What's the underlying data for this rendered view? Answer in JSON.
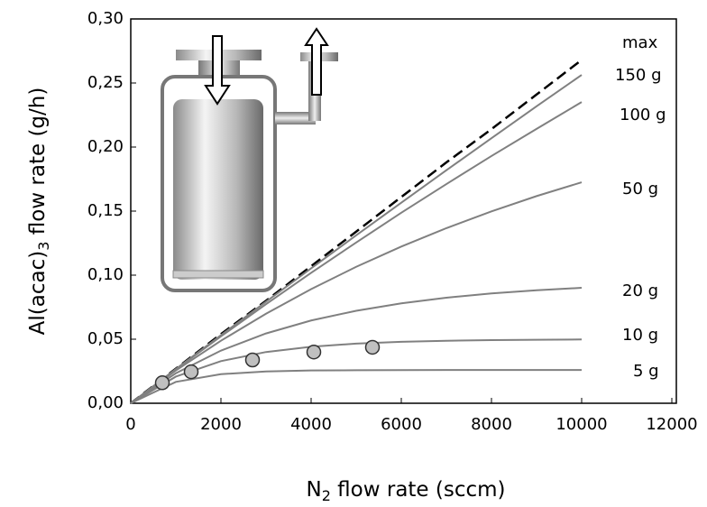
{
  "chart_data": {
    "type": "line",
    "xlabel": {
      "main": "N",
      "sub": "2",
      "rest": " flow rate (sccm)"
    },
    "ylabel": {
      "main": "Al(acac)",
      "sub": "3",
      "rest": " flow rate (g/h)"
    },
    "x": [
      0,
      1000,
      2000,
      3000,
      4000,
      5000,
      6000,
      7000,
      8000,
      9000,
      10000
    ],
    "series": [
      {
        "name": "max",
        "color": "#000000",
        "dashed": true,
        "values": [
          0,
          0.027,
          0.054,
          0.08,
          0.107,
          0.134,
          0.161,
          0.188,
          0.214,
          0.241,
          0.268
        ]
      },
      {
        "name": "150 g",
        "color": "#808080",
        "values": [
          0,
          0.0267,
          0.0531,
          0.0793,
          0.1053,
          0.1311,
          0.1566,
          0.1819,
          0.2069,
          0.2318,
          0.2563
        ]
      },
      {
        "name": "100 g",
        "color": "#808080",
        "values": [
          0,
          0.0264,
          0.0522,
          0.0773,
          0.1018,
          0.1255,
          0.1487,
          0.1711,
          0.193,
          0.2142,
          0.2351
        ]
      },
      {
        "name": "50 g",
        "color": "#808080",
        "values": [
          0,
          0.0256,
          0.0488,
          0.0699,
          0.0891,
          0.1065,
          0.1223,
          0.1367,
          0.1498,
          0.1617,
          0.1725
        ]
      },
      {
        "name": "20 g",
        "color": "#808080",
        "values": [
          0,
          0.0234,
          0.0411,
          0.0545,
          0.0646,
          0.0722,
          0.078,
          0.0824,
          0.0857,
          0.0882,
          0.0901
        ]
      },
      {
        "name": "10 g",
        "color": "#808080",
        "values": [
          0,
          0.0208,
          0.0329,
          0.04,
          0.0441,
          0.0466,
          0.048,
          0.0488,
          0.0493,
          0.0496,
          0.0498
        ]
      },
      {
        "name": "5 g",
        "color": "#808080",
        "values": [
          0,
          0.0167,
          0.0227,
          0.0248,
          0.0256,
          0.0258,
          0.0259,
          0.026,
          0.026,
          0.026,
          0.026
        ]
      }
    ],
    "points": {
      "type": "scatter",
      "color": "#c0c0c0",
      "x": [
        700,
        1340,
        2700,
        4060,
        5360
      ],
      "values": [
        0.016,
        0.0246,
        0.0338,
        0.04,
        0.0437
      ]
    },
    "xlim": [
      0,
      12000
    ],
    "xticks": [
      0,
      2000,
      4000,
      6000,
      8000,
      10000,
      12000
    ],
    "ylim": [
      0,
      0.3
    ],
    "yticks": [
      {
        "value": 0,
        "label": "0,00"
      },
      {
        "value": 0.05,
        "label": "0,05"
      },
      {
        "value": 0.1,
        "label": "0,10"
      },
      {
        "value": 0.15,
        "label": "0,15"
      },
      {
        "value": 0.2,
        "label": "0,20"
      },
      {
        "value": 0.25,
        "label": "0,25"
      },
      {
        "value": 0.3,
        "label": "0,30"
      }
    ]
  }
}
